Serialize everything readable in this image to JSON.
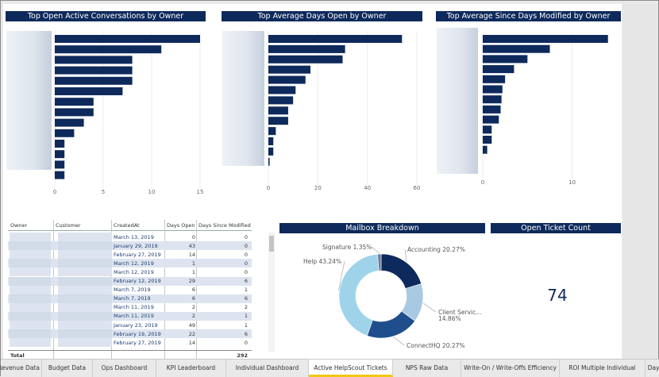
{
  "charts": {
    "conversations": {
      "title": "Top Open Active Conversations by Owner"
    },
    "days_open": {
      "title": "Top Average Days Open by Owner"
    },
    "days_modified": {
      "title": "Top Average Since Days Modified by Owner"
    },
    "mailbox": {
      "title": "Mailbox Breakdown"
    },
    "open_count": {
      "title": "Open Ticket Count"
    }
  },
  "chart_data": [
    {
      "type": "bar",
      "orientation": "horizontal",
      "title": "Top Open Active Conversations by Owner",
      "values": [
        15,
        11,
        8,
        8,
        8,
        7,
        4,
        4,
        3,
        2,
        1,
        1,
        1,
        1
      ],
      "xlim": [
        0,
        15
      ],
      "xticks": [
        "0",
        "5",
        "10",
        "15"
      ],
      "color": "#0e2a5c"
    },
    {
      "type": "bar",
      "orientation": "horizontal",
      "title": "Top Average Days Open by Owner",
      "values": [
        54,
        31,
        30,
        17,
        15,
        11,
        10,
        8,
        8,
        3,
        2,
        2,
        0.5
      ],
      "xlim": [
        0,
        60
      ],
      "xticks": [
        "0",
        "20",
        "40",
        "60"
      ],
      "color": "#0e2a5c"
    },
    {
      "type": "bar",
      "orientation": "horizontal",
      "title": "Top Average Since Days Modified by Owner",
      "values": [
        14,
        7.5,
        5,
        3.5,
        2.5,
        2.2,
        2.1,
        2,
        1.8,
        1,
        1,
        0.5
      ],
      "xlim": [
        0,
        15
      ],
      "xticks": [
        "0",
        "10"
      ],
      "color": "#0e2a5c"
    },
    {
      "type": "pie",
      "title": "Mailbox Breakdown",
      "donut": true,
      "slices": [
        {
          "label": "Accounting",
          "value": 20.27,
          "display": "Accounting 20.27%",
          "color": "#0e2a5c"
        },
        {
          "label": "Client Servic...",
          "value": 14.86,
          "display": "Client Servic... 14.86%",
          "color": "#a9c9e3"
        },
        {
          "label": "ConnectHQ",
          "value": 20.27,
          "display": "ConnectHQ 20.27%",
          "color": "#1f4e8c"
        },
        {
          "label": "Help",
          "value": 43.24,
          "display": "Help 43.24%",
          "color": "#9fd3ea"
        },
        {
          "label": "Signature",
          "value": 1.35,
          "display": "Signature 1.35%",
          "color": "#6b7c99"
        }
      ]
    }
  ],
  "table": {
    "headers": {
      "owner": "Owner",
      "customer": "Customer",
      "created": "CreatedAt",
      "days_open": "Days Open",
      "since_modified": "Days Since Modified"
    },
    "rows": [
      {
        "created": "March 13, 2019",
        "days_open": "0",
        "since": "0"
      },
      {
        "created": "January 29, 2019",
        "days_open": "43",
        "since": "0"
      },
      {
        "created": "February 27, 2019",
        "days_open": "14",
        "since": "0"
      },
      {
        "created": "March 12, 2019",
        "days_open": "1",
        "since": "0"
      },
      {
        "created": "March 12, 2019",
        "days_open": "1",
        "since": "0"
      },
      {
        "created": "February 12, 2019",
        "days_open": "29",
        "since": "6"
      },
      {
        "created": "March 7, 2019",
        "days_open": "6",
        "since": "1"
      },
      {
        "created": "March 7, 2019",
        "days_open": "6",
        "since": "6"
      },
      {
        "created": "March 11, 2019",
        "days_open": "2",
        "since": "2"
      },
      {
        "created": "March 11, 2019",
        "days_open": "2",
        "since": "1"
      },
      {
        "created": "January 23, 2019",
        "days_open": "49",
        "since": "1"
      },
      {
        "created": "February 19, 2019",
        "days_open": "22",
        "since": "6"
      },
      {
        "created": "February 27, 2019",
        "days_open": "14",
        "since": "0"
      }
    ],
    "total_label": "Total",
    "total_value": "292"
  },
  "kpi": {
    "open_ticket_count": "74"
  },
  "tabs": [
    {
      "label": "Revenue Data",
      "active": false
    },
    {
      "label": "Budget Data",
      "active": false
    },
    {
      "label": "Ops Dashboard",
      "active": false
    },
    {
      "label": "KPI Leaderboard",
      "active": false
    },
    {
      "label": "Individual Dashboard",
      "active": false
    },
    {
      "label": "Active HelpScout Tickets",
      "active": true
    },
    {
      "label": "NPS Raw Data",
      "active": false
    },
    {
      "label": "Write-On / Write-Offs Efficiency",
      "active": false
    },
    {
      "label": "ROI Multiple Individual",
      "active": false
    },
    {
      "label": "Days Overv",
      "active": false
    }
  ]
}
